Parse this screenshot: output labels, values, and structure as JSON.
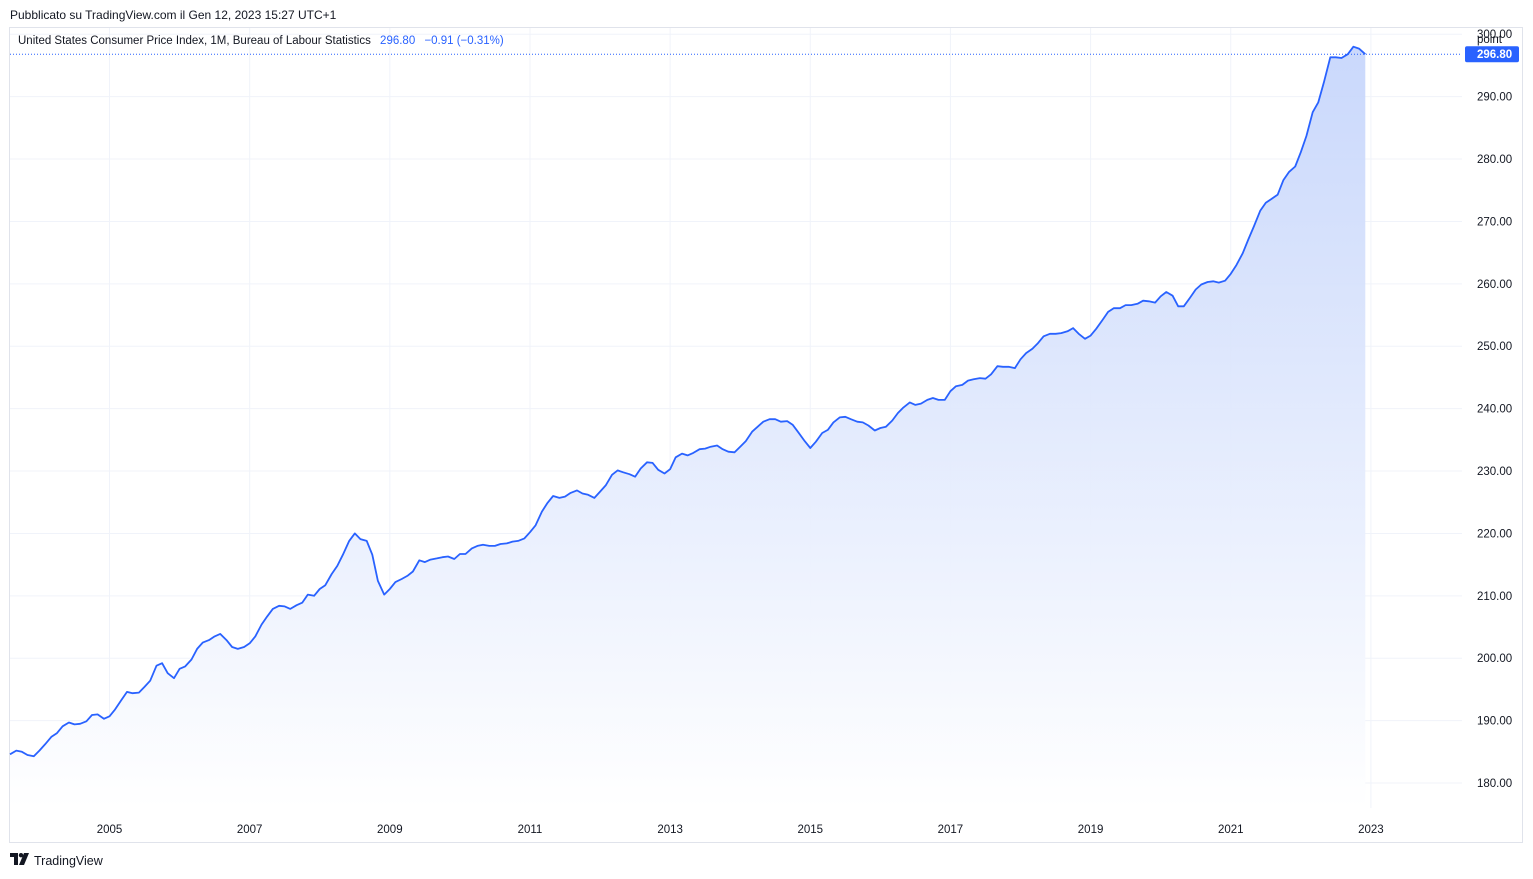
{
  "published": "Pubblicato su TradingView.com il Gen 12, 2023 15:27 UTC+1",
  "legend": {
    "name": "United States Consumer Price Index, 1M, Bureau of Labour Statistics",
    "value": "296.80",
    "change": "−0.91 (−0.31%)"
  },
  "unit_label": "point",
  "last_price_label": "296.80",
  "footer": {
    "brand": "TradingView",
    "logo_icon": "tradingview-logo-icon"
  },
  "colors": {
    "line": "#2962ff",
    "fill_top": "#c4d4fb",
    "fill_bottom": "#ffffff",
    "grid": "#f0f3fa"
  },
  "chart_data": {
    "type": "area",
    "title": "United States Consumer Price Index, 1M, Bureau of Labour Statistics",
    "xlabel": "",
    "ylabel": "point",
    "ylim": [
      176,
      301
    ],
    "xlim": [
      2003.58,
      2024.3
    ],
    "y_ticks": [
      "180.00",
      "190.00",
      "200.00",
      "210.00",
      "220.00",
      "230.00",
      "240.00",
      "250.00",
      "260.00",
      "270.00",
      "280.00",
      "290.00",
      "300.00"
    ],
    "x_ticks": [
      "2005",
      "2007",
      "2009",
      "2011",
      "2013",
      "2015",
      "2017",
      "2019",
      "2021",
      "2023"
    ],
    "grid": true,
    "series": [
      {
        "points": [
          [
            2003.58,
            184.6
          ],
          [
            2003.67,
            185.2
          ],
          [
            2003.75,
            185.0
          ],
          [
            2003.83,
            184.5
          ],
          [
            2003.92,
            184.3
          ],
          [
            2004.0,
            185.2
          ],
          [
            2004.08,
            186.2
          ],
          [
            2004.17,
            187.4
          ],
          [
            2004.25,
            188.0
          ],
          [
            2004.33,
            189.1
          ],
          [
            2004.42,
            189.7
          ],
          [
            2004.5,
            189.4
          ],
          [
            2004.58,
            189.5
          ],
          [
            2004.67,
            189.9
          ],
          [
            2004.75,
            190.9
          ],
          [
            2004.83,
            191.0
          ],
          [
            2004.92,
            190.3
          ],
          [
            2005.0,
            190.7
          ],
          [
            2005.08,
            191.8
          ],
          [
            2005.17,
            193.3
          ],
          [
            2005.25,
            194.6
          ],
          [
            2005.33,
            194.4
          ],
          [
            2005.42,
            194.5
          ],
          [
            2005.5,
            195.4
          ],
          [
            2005.58,
            196.4
          ],
          [
            2005.67,
            198.8
          ],
          [
            2005.75,
            199.2
          ],
          [
            2005.83,
            197.6
          ],
          [
            2005.92,
            196.8
          ],
          [
            2006.0,
            198.3
          ],
          [
            2006.08,
            198.7
          ],
          [
            2006.17,
            199.8
          ],
          [
            2006.25,
            201.5
          ],
          [
            2006.33,
            202.5
          ],
          [
            2006.42,
            202.9
          ],
          [
            2006.5,
            203.5
          ],
          [
            2006.58,
            203.9
          ],
          [
            2006.67,
            202.9
          ],
          [
            2006.75,
            201.8
          ],
          [
            2006.83,
            201.5
          ],
          [
            2006.92,
            201.8
          ],
          [
            2007.0,
            202.4
          ],
          [
            2007.08,
            203.5
          ],
          [
            2007.17,
            205.4
          ],
          [
            2007.25,
            206.7
          ],
          [
            2007.33,
            207.9
          ],
          [
            2007.42,
            208.4
          ],
          [
            2007.5,
            208.3
          ],
          [
            2007.58,
            207.9
          ],
          [
            2007.67,
            208.5
          ],
          [
            2007.75,
            208.9
          ],
          [
            2007.83,
            210.2
          ],
          [
            2007.92,
            210.0
          ],
          [
            2008.0,
            211.1
          ],
          [
            2008.08,
            211.7
          ],
          [
            2008.17,
            213.5
          ],
          [
            2008.25,
            214.8
          ],
          [
            2008.33,
            216.6
          ],
          [
            2008.42,
            218.8
          ],
          [
            2008.5,
            220.0
          ],
          [
            2008.58,
            219.1
          ],
          [
            2008.67,
            218.8
          ],
          [
            2008.75,
            216.6
          ],
          [
            2008.83,
            212.4
          ],
          [
            2008.92,
            210.2
          ],
          [
            2009.0,
            211.1
          ],
          [
            2009.08,
            212.2
          ],
          [
            2009.17,
            212.7
          ],
          [
            2009.25,
            213.2
          ],
          [
            2009.33,
            213.9
          ],
          [
            2009.42,
            215.7
          ],
          [
            2009.5,
            215.4
          ],
          [
            2009.58,
            215.8
          ],
          [
            2009.67,
            216.0
          ],
          [
            2009.75,
            216.2
          ],
          [
            2009.83,
            216.3
          ],
          [
            2009.92,
            215.9
          ],
          [
            2010.0,
            216.7
          ],
          [
            2010.08,
            216.7
          ],
          [
            2010.17,
            217.6
          ],
          [
            2010.25,
            218.0
          ],
          [
            2010.33,
            218.2
          ],
          [
            2010.42,
            218.0
          ],
          [
            2010.5,
            218.0
          ],
          [
            2010.58,
            218.3
          ],
          [
            2010.67,
            218.4
          ],
          [
            2010.75,
            218.7
          ],
          [
            2010.83,
            218.8
          ],
          [
            2010.92,
            219.2
          ],
          [
            2011.0,
            220.2
          ],
          [
            2011.08,
            221.3
          ],
          [
            2011.17,
            223.5
          ],
          [
            2011.25,
            224.9
          ],
          [
            2011.33,
            226.0
          ],
          [
            2011.42,
            225.7
          ],
          [
            2011.5,
            225.9
          ],
          [
            2011.58,
            226.5
          ],
          [
            2011.67,
            226.9
          ],
          [
            2011.75,
            226.4
          ],
          [
            2011.83,
            226.2
          ],
          [
            2011.92,
            225.7
          ],
          [
            2012.0,
            226.7
          ],
          [
            2012.08,
            227.7
          ],
          [
            2012.17,
            229.4
          ],
          [
            2012.25,
            230.1
          ],
          [
            2012.33,
            229.8
          ],
          [
            2012.42,
            229.5
          ],
          [
            2012.5,
            229.1
          ],
          [
            2012.58,
            230.4
          ],
          [
            2012.67,
            231.4
          ],
          [
            2012.75,
            231.3
          ],
          [
            2012.83,
            230.2
          ],
          [
            2012.92,
            229.6
          ],
          [
            2013.0,
            230.3
          ],
          [
            2013.08,
            232.2
          ],
          [
            2013.17,
            232.8
          ],
          [
            2013.25,
            232.5
          ],
          [
            2013.33,
            232.9
          ],
          [
            2013.42,
            233.5
          ],
          [
            2013.5,
            233.6
          ],
          [
            2013.58,
            233.9
          ],
          [
            2013.67,
            234.1
          ],
          [
            2013.75,
            233.5
          ],
          [
            2013.83,
            233.1
          ],
          [
            2013.92,
            233.0
          ],
          [
            2014.0,
            233.9
          ],
          [
            2014.08,
            234.8
          ],
          [
            2014.17,
            236.3
          ],
          [
            2014.25,
            237.1
          ],
          [
            2014.33,
            237.9
          ],
          [
            2014.42,
            238.3
          ],
          [
            2014.5,
            238.3
          ],
          [
            2014.58,
            237.9
          ],
          [
            2014.67,
            238.0
          ],
          [
            2014.75,
            237.4
          ],
          [
            2014.83,
            236.2
          ],
          [
            2014.92,
            234.8
          ],
          [
            2015.0,
            233.7
          ],
          [
            2015.08,
            234.7
          ],
          [
            2015.17,
            236.1
          ],
          [
            2015.25,
            236.6
          ],
          [
            2015.33,
            237.8
          ],
          [
            2015.42,
            238.6
          ],
          [
            2015.5,
            238.7
          ],
          [
            2015.58,
            238.3
          ],
          [
            2015.67,
            237.9
          ],
          [
            2015.75,
            237.8
          ],
          [
            2015.83,
            237.3
          ],
          [
            2015.92,
            236.5
          ],
          [
            2016.0,
            236.9
          ],
          [
            2016.08,
            237.1
          ],
          [
            2016.17,
            238.1
          ],
          [
            2016.25,
            239.3
          ],
          [
            2016.33,
            240.2
          ],
          [
            2016.42,
            241.0
          ],
          [
            2016.5,
            240.6
          ],
          [
            2016.58,
            240.8
          ],
          [
            2016.67,
            241.4
          ],
          [
            2016.75,
            241.7
          ],
          [
            2016.83,
            241.4
          ],
          [
            2016.92,
            241.4
          ],
          [
            2017.0,
            242.8
          ],
          [
            2017.08,
            243.6
          ],
          [
            2017.17,
            243.8
          ],
          [
            2017.25,
            244.5
          ],
          [
            2017.33,
            244.7
          ],
          [
            2017.42,
            244.9
          ],
          [
            2017.5,
            244.8
          ],
          [
            2017.58,
            245.5
          ],
          [
            2017.67,
            246.8
          ],
          [
            2017.75,
            246.7
          ],
          [
            2017.83,
            246.7
          ],
          [
            2017.92,
            246.5
          ],
          [
            2018.0,
            247.9
          ],
          [
            2018.08,
            248.9
          ],
          [
            2018.17,
            249.6
          ],
          [
            2018.25,
            250.5
          ],
          [
            2018.33,
            251.6
          ],
          [
            2018.42,
            251.99
          ],
          [
            2018.5,
            252.0
          ],
          [
            2018.58,
            252.1
          ],
          [
            2018.67,
            252.4
          ],
          [
            2018.75,
            252.9
          ],
          [
            2018.83,
            252.0
          ],
          [
            2018.92,
            251.2
          ],
          [
            2019.0,
            251.7
          ],
          [
            2019.08,
            252.8
          ],
          [
            2019.17,
            254.2
          ],
          [
            2019.25,
            255.5
          ],
          [
            2019.33,
            256.1
          ],
          [
            2019.42,
            256.1
          ],
          [
            2019.5,
            256.6
          ],
          [
            2019.58,
            256.6
          ],
          [
            2019.67,
            256.8
          ],
          [
            2019.75,
            257.3
          ],
          [
            2019.83,
            257.2
          ],
          [
            2019.92,
            257.0
          ],
          [
            2020.0,
            258.0
          ],
          [
            2020.08,
            258.7
          ],
          [
            2020.17,
            258.1
          ],
          [
            2020.25,
            256.4
          ],
          [
            2020.33,
            256.4
          ],
          [
            2020.42,
            257.8
          ],
          [
            2020.5,
            259.1
          ],
          [
            2020.58,
            259.9
          ],
          [
            2020.67,
            260.3
          ],
          [
            2020.75,
            260.4
          ],
          [
            2020.83,
            260.2
          ],
          [
            2020.92,
            260.5
          ],
          [
            2021.0,
            261.6
          ],
          [
            2021.08,
            263.0
          ],
          [
            2021.17,
            264.9
          ],
          [
            2021.25,
            267.1
          ],
          [
            2021.33,
            269.2
          ],
          [
            2021.42,
            271.7
          ],
          [
            2021.5,
            273.0
          ],
          [
            2021.58,
            273.6
          ],
          [
            2021.67,
            274.3
          ],
          [
            2021.75,
            276.6
          ],
          [
            2021.83,
            277.9
          ],
          [
            2021.92,
            278.8
          ],
          [
            2022.0,
            281.1
          ],
          [
            2022.08,
            283.7
          ],
          [
            2022.17,
            287.5
          ],
          [
            2022.25,
            289.1
          ],
          [
            2022.33,
            292.3
          ],
          [
            2022.42,
            296.3
          ],
          [
            2022.5,
            296.3
          ],
          [
            2022.58,
            296.2
          ],
          [
            2022.67,
            296.8
          ],
          [
            2022.75,
            298.0
          ],
          [
            2022.83,
            297.7
          ],
          [
            2022.92,
            296.8
          ]
        ]
      }
    ]
  }
}
